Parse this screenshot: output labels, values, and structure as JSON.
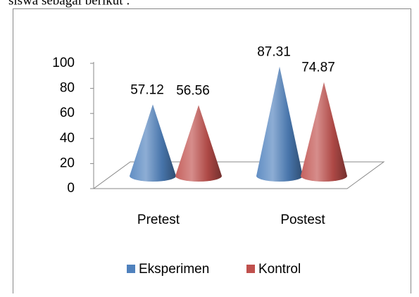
{
  "header_text": "siswa sebagai berikut :",
  "chart_data": {
    "type": "cone",
    "categories": [
      "Pretest",
      "Postest"
    ],
    "series": [
      {
        "name": "Eksperimen",
        "color": "#4f81bd",
        "values": [
          57.12,
          87.31
        ]
      },
      {
        "name": "Kontrol",
        "color": "#c0504d",
        "values": [
          56.56,
          74.87
        ]
      }
    ],
    "ylim": [
      0,
      100
    ],
    "yticks": [
      0,
      20,
      40,
      60,
      80,
      100
    ],
    "legend": "bottom"
  }
}
